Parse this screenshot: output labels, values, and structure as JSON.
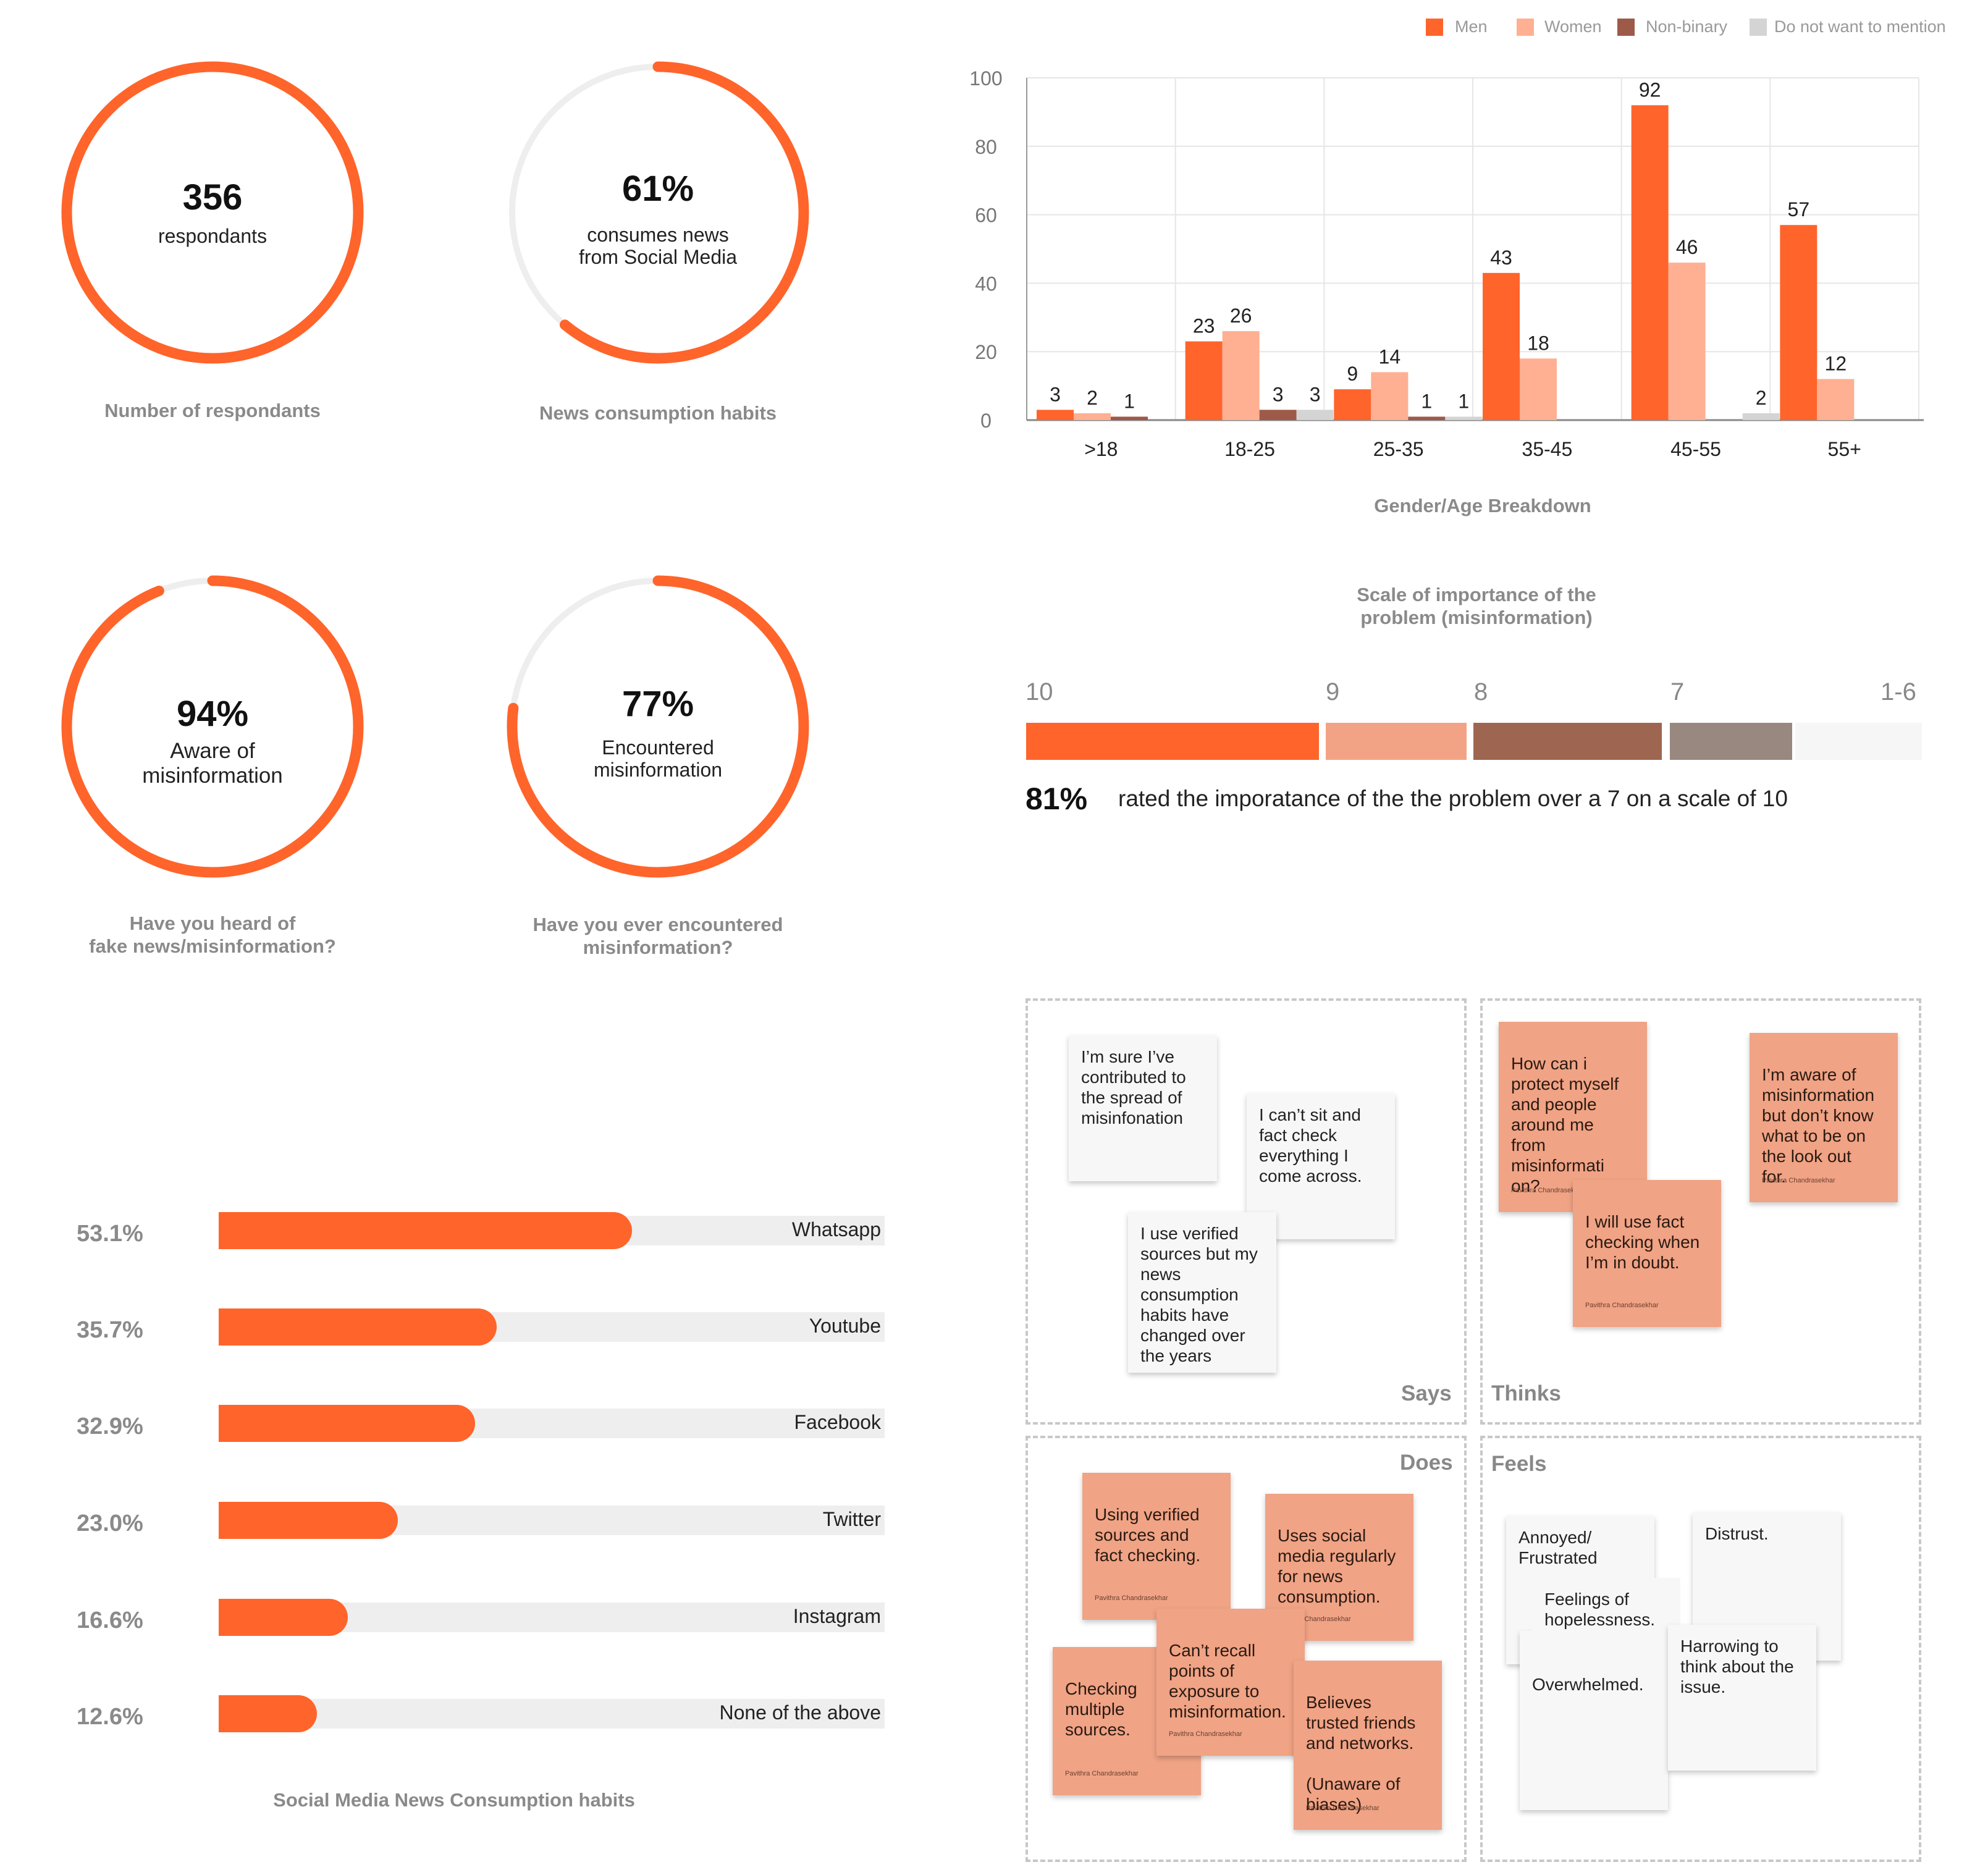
{
  "stats": [
    {
      "value": "356",
      "text": "respondants",
      "caption": "Number of respondants",
      "fraction": 1.0
    },
    {
      "value": "61%",
      "text": "consumes news\nfrom Social Media",
      "caption": "News consumption habits",
      "fraction": 0.61
    },
    {
      "value": "94%",
      "text": "Aware of\nmisinformation",
      "caption": "Have you heard of\nfake news/misinformation?",
      "fraction": 0.94
    },
    {
      "value": "77%",
      "text": "Encountered\nmisinformation",
      "caption": "Have you ever encountered\nmisinformation?",
      "fraction": 0.77
    }
  ],
  "colors": {
    "accent": "#ff642b",
    "women": "#ffb092",
    "nonbinary": "#9e5a49",
    "donotmention": "#d4d4d4",
    "track": "#eeeeee",
    "grey_text": "#8a8a8a"
  },
  "chart_data": [
    {
      "type": "bar",
      "title": "Gender/Age Breakdown",
      "categories": [
        ">18",
        "18-25",
        "25-35",
        "35-45",
        "45-55",
        "55+"
      ],
      "series": [
        {
          "name": "Men",
          "values": [
            3,
            23,
            9,
            43,
            92,
            57
          ]
        },
        {
          "name": "Women",
          "values": [
            2,
            26,
            14,
            18,
            46,
            12
          ]
        },
        {
          "name": "Non-binary",
          "values": [
            1,
            3,
            1,
            null,
            null,
            null
          ]
        },
        {
          "name": "Do not want to mention",
          "values": [
            null,
            3,
            1,
            null,
            2,
            null
          ]
        }
      ],
      "ylim": [
        0,
        100
      ],
      "yticks": [
        0,
        20,
        40,
        60,
        80,
        100
      ],
      "legend": "top-right",
      "grid": true
    },
    {
      "type": "bar",
      "title": "Social Media News Consumption habits",
      "orientation": "horizontal",
      "categories": [
        "Whatsapp",
        "Youtube",
        "Facebook",
        "Twitter",
        "Instagram",
        "None of the above"
      ],
      "values": [
        53.1,
        35.7,
        32.9,
        23.0,
        16.6,
        12.6
      ],
      "value_labels": [
        "53.1%",
        "35.7%",
        "32.9%",
        "23.0%",
        "16.6%",
        "12.6%"
      ]
    }
  ],
  "importance": {
    "title": "Scale of importance of the\nproblem (misinformation)",
    "scale_labels": [
      "10",
      "9",
      "8",
      "7",
      "1-6"
    ],
    "big_value": "81%",
    "sentence": "rated the imporatance of the the problem over a 7 on a scale of 10"
  },
  "empathy": {
    "labels": {
      "says": "Says",
      "thinks": "Thinks",
      "does": "Does",
      "feels": "Feels"
    },
    "author": "Pavithra Chandrasekhar",
    "says": [
      "I’m sure I’ve\ncontributed to\nthe spread of\nmisinfonation",
      "I can’t sit and\nfact check\neverything I\ncome across.",
      "I use verified\nsources but my\nnews\nconsumption\nhabits have\nchanged over\nthe years"
    ],
    "thinks": [
      "How can i\nprotect myself\nand people\naround me\nfrom\nmisinformati\non?",
      "I’m aware of\nmisinformation\nbut don’t know\nwhat to be on\nthe look out\nfor.",
      "I will use fact\nchecking when\nI’m in doubt."
    ],
    "does": [
      "Using verified\nsources and\nfact checking.",
      "Uses social\nmedia regularly\nfor news\nconsumption.",
      "Can’t recall\npoints of\nexposure to\nmisinformation.",
      "Checking\nmultiple\nsources.",
      "Believes\ntrusted friends\nand networks.\n\n(Unaware of\nbiases)"
    ],
    "feels": [
      "Annoyed/\nFrustrated",
      "Distrust.",
      "Feelings of\nhopelessness.",
      "Harrowing to\nthink about the\nissue.",
      "Overwhelmed."
    ]
  }
}
